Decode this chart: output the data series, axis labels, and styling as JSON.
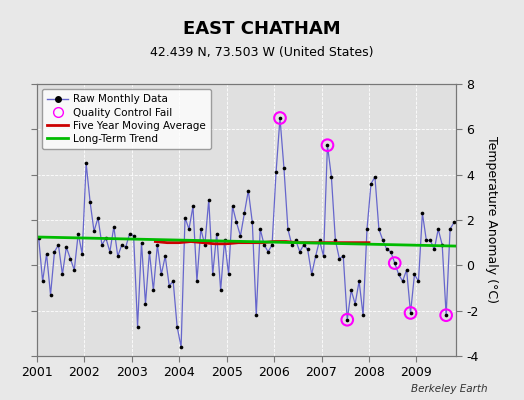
{
  "title": "EAST CHATHAM",
  "subtitle": "42.439 N, 73.503 W (United States)",
  "ylabel": "Temperature Anomaly (°C)",
  "credit": "Berkeley Earth",
  "ylim": [
    -4,
    8
  ],
  "xlim": [
    2001.0,
    2009.83
  ],
  "yticks": [
    -4,
    -2,
    0,
    2,
    4,
    6,
    8
  ],
  "xticks": [
    2001,
    2002,
    2003,
    2004,
    2005,
    2006,
    2007,
    2008,
    2009
  ],
  "bg_color": "#e8e8e8",
  "plot_bg_color": "#e0e0e0",
  "raw_color": "#6666cc",
  "dot_color": "#000000",
  "ma_color": "#cc0000",
  "trend_color": "#00bb00",
  "qc_color": "#ff00ff",
  "monthly_times": [
    2001.042,
    2001.125,
    2001.208,
    2001.292,
    2001.375,
    2001.458,
    2001.542,
    2001.625,
    2001.708,
    2001.792,
    2001.875,
    2001.958,
    2002.042,
    2002.125,
    2002.208,
    2002.292,
    2002.375,
    2002.458,
    2002.542,
    2002.625,
    2002.708,
    2002.792,
    2002.875,
    2002.958,
    2003.042,
    2003.125,
    2003.208,
    2003.292,
    2003.375,
    2003.458,
    2003.542,
    2003.625,
    2003.708,
    2003.792,
    2003.875,
    2003.958,
    2004.042,
    2004.125,
    2004.208,
    2004.292,
    2004.375,
    2004.458,
    2004.542,
    2004.625,
    2004.708,
    2004.792,
    2004.875,
    2004.958,
    2005.042,
    2005.125,
    2005.208,
    2005.292,
    2005.375,
    2005.458,
    2005.542,
    2005.625,
    2005.708,
    2005.792,
    2005.875,
    2005.958,
    2006.042,
    2006.125,
    2006.208,
    2006.292,
    2006.375,
    2006.458,
    2006.542,
    2006.625,
    2006.708,
    2006.792,
    2006.875,
    2006.958,
    2007.042,
    2007.125,
    2007.208,
    2007.292,
    2007.375,
    2007.458,
    2007.542,
    2007.625,
    2007.708,
    2007.792,
    2007.875,
    2007.958,
    2008.042,
    2008.125,
    2008.208,
    2008.292,
    2008.375,
    2008.458,
    2008.542,
    2008.625,
    2008.708,
    2008.792,
    2008.875,
    2008.958,
    2009.042,
    2009.125,
    2009.208,
    2009.292,
    2009.375,
    2009.458,
    2009.542,
    2009.625,
    2009.708,
    2009.792
  ],
  "monthly_values": [
    1.2,
    -0.7,
    0.5,
    -1.3,
    0.6,
    0.9,
    -0.4,
    0.8,
    0.3,
    -0.2,
    1.4,
    0.5,
    4.5,
    2.8,
    1.5,
    2.1,
    0.9,
    1.2,
    0.6,
    1.7,
    0.4,
    0.9,
    0.8,
    1.4,
    1.3,
    -2.7,
    1.0,
    -1.7,
    0.6,
    -1.1,
    0.9,
    -0.4,
    0.4,
    -0.9,
    -0.7,
    -2.7,
    -3.6,
    2.1,
    1.6,
    2.6,
    -0.7,
    1.6,
    0.9,
    2.9,
    -0.4,
    1.4,
    -1.1,
    1.1,
    -0.4,
    2.6,
    1.9,
    1.3,
    2.3,
    3.3,
    1.9,
    -2.2,
    1.6,
    0.9,
    0.6,
    0.9,
    4.1,
    6.5,
    4.3,
    1.6,
    0.9,
    1.1,
    0.6,
    0.9,
    0.7,
    -0.4,
    0.4,
    1.1,
    0.4,
    5.3,
    3.9,
    1.1,
    0.3,
    0.4,
    -2.4,
    -1.1,
    -1.7,
    -0.7,
    -2.2,
    1.6,
    3.6,
    3.9,
    1.6,
    1.1,
    0.7,
    0.6,
    0.1,
    -0.4,
    -0.7,
    -0.2,
    -2.1,
    -0.4,
    -0.7,
    2.3,
    1.1,
    1.1,
    0.7,
    1.6,
    0.9,
    -2.2,
    1.6,
    1.9
  ],
  "qc_fail_times": [
    2006.125,
    2007.125,
    2007.542,
    2008.542,
    2008.875,
    2009.625
  ],
  "qc_fail_values": [
    6.5,
    5.3,
    -2.4,
    0.1,
    -2.1,
    -2.2
  ],
  "ma_times": [
    2003.5,
    2003.75,
    2004.0,
    2004.25,
    2004.5,
    2004.75,
    2005.0,
    2005.25,
    2005.5,
    2005.75,
    2006.0,
    2006.25,
    2006.5,
    2006.75,
    2007.0,
    2007.25,
    2007.5,
    2007.75,
    2008.0
  ],
  "ma_values": [
    1.05,
    1.0,
    1.0,
    1.05,
    1.0,
    0.95,
    0.95,
    1.0,
    1.0,
    1.0,
    1.05,
    1.05,
    1.0,
    1.0,
    1.0,
    1.0,
    1.0,
    1.0,
    1.0
  ],
  "trend_x": [
    2001.0,
    2009.83
  ],
  "trend_y": [
    1.25,
    0.85
  ]
}
